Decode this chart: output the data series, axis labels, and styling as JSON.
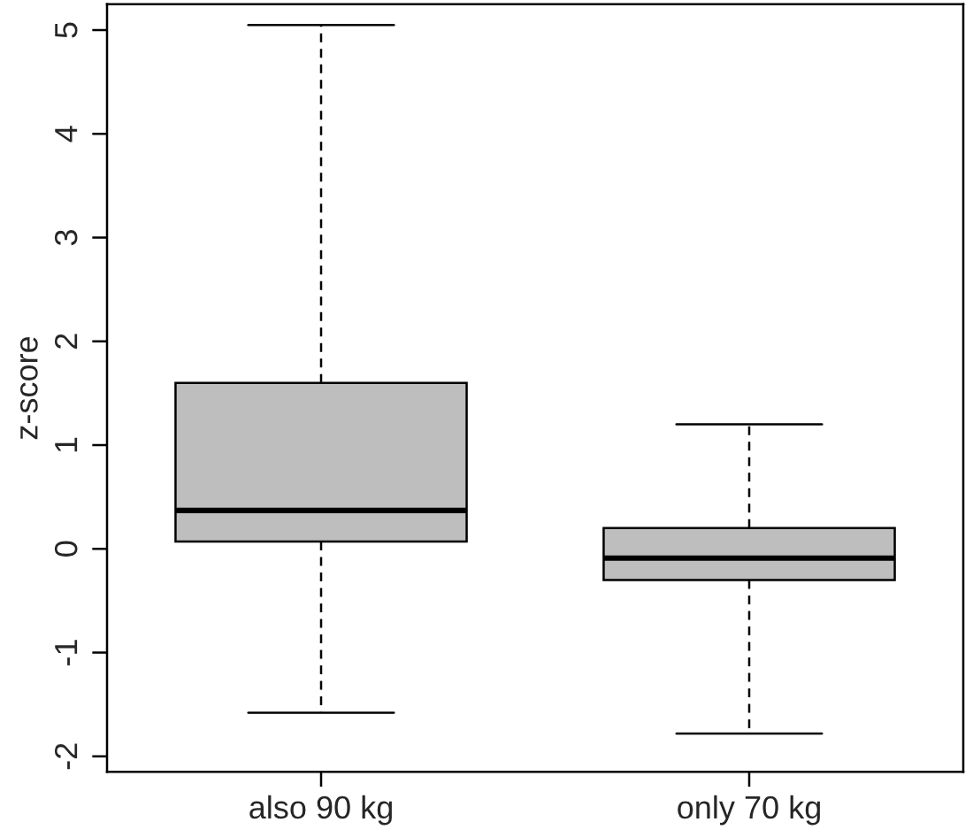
{
  "chart_data": {
    "type": "box",
    "ylabel": "z-score",
    "categories": [
      "also 90 kg",
      "only 70 kg"
    ],
    "series": [
      {
        "color": "#bebebe",
        "boxes": [
          {
            "low": -1.58,
            "q1": 0.07,
            "median": 0.37,
            "q3": 1.6,
            "high": 5.05
          },
          {
            "low": -1.78,
            "q1": -0.3,
            "median": -0.09,
            "q3": 0.2,
            "high": 1.2
          }
        ]
      }
    ],
    "ylim": [
      -2.15,
      5.25
    ],
    "yticks": [
      -2,
      -1,
      0,
      1,
      2,
      3,
      4,
      5
    ]
  }
}
